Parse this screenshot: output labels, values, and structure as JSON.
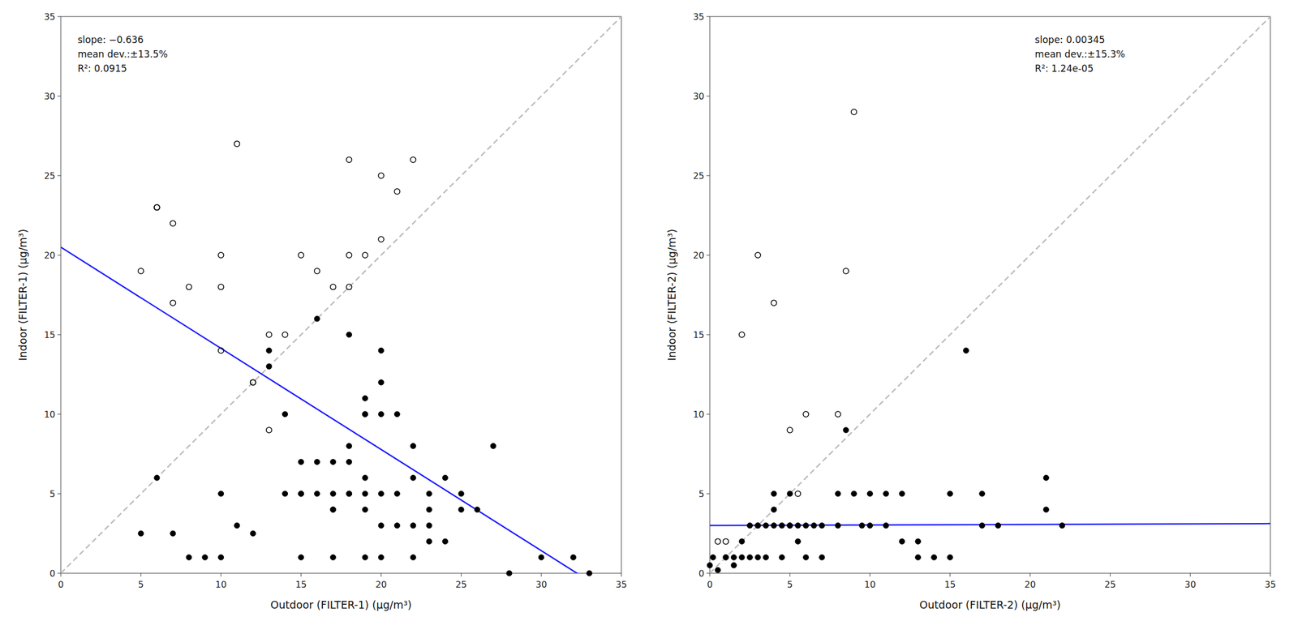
{
  "chart_data": [
    {
      "type": "scatter",
      "xlabel": "Outdoor (FILTER-1) (μg/m³)",
      "ylabel": "Indoor (FILTER-1) (μg/m³)",
      "xlim": [
        0,
        35
      ],
      "ylim": [
        0,
        35
      ],
      "xticks": [
        0,
        5,
        10,
        15,
        20,
        25,
        30,
        35
      ],
      "yticks": [
        0,
        5,
        10,
        15,
        20,
        25,
        30,
        35
      ],
      "grid": false,
      "annotation": [
        "slope: −0.636",
        "mean dev.:±13.5%",
        "R²: 0.0915"
      ],
      "regression": {
        "slope": -0.636,
        "intercept": 20.5,
        "color": "#1a1aff",
        "line_style": "solid"
      },
      "series": [
        {
          "type": "line",
          "line_style": "dashed",
          "color": "#bbbbbb",
          "x": [
            0,
            35
          ],
          "values": [
            0,
            35
          ]
        },
        {
          "type": "scatter",
          "marker": "circle-open",
          "color": "#000000",
          "x": [
            5,
            6,
            6,
            7,
            7,
            8,
            10,
            10,
            10,
            11,
            12,
            12,
            13,
            13,
            14,
            15,
            16,
            17,
            18,
            18,
            18,
            19,
            20,
            20,
            21,
            22
          ],
          "values": [
            19,
            23,
            23,
            17,
            22,
            18,
            20,
            18,
            14,
            27,
            12,
            12,
            9,
            15,
            15,
            20,
            19,
            18,
            20,
            18,
            26,
            20,
            25,
            21,
            24,
            26
          ]
        },
        {
          "type": "scatter",
          "marker": "circle",
          "color": "#000000",
          "x": [
            5,
            6,
            7,
            8,
            9,
            10,
            10,
            11,
            12,
            13,
            13,
            14,
            14,
            15,
            15,
            15,
            15,
            16,
            16,
            16,
            17,
            17,
            17,
            17,
            17,
            18,
            18,
            18,
            18,
            18,
            19,
            19,
            19,
            19,
            19,
            19,
            19,
            20,
            20,
            20,
            20,
            20,
            20,
            21,
            21,
            21,
            22,
            22,
            22,
            22,
            23,
            23,
            23,
            23,
            24,
            24,
            25,
            25,
            26,
            27,
            28,
            30,
            32,
            33
          ],
          "values": [
            2.5,
            6,
            2.5,
            1,
            1,
            5,
            1,
            3,
            2.5,
            14,
            13,
            10,
            5,
            5,
            5,
            7,
            1,
            7,
            5,
            16,
            7,
            5,
            4,
            4,
            1,
            8,
            7,
            5,
            5,
            15,
            11,
            10,
            10,
            6,
            5,
            4,
            1,
            14,
            12,
            10,
            5,
            3,
            1,
            10,
            5,
            3,
            8,
            6,
            3,
            1,
            5,
            4,
            3,
            2,
            6,
            2,
            5,
            4,
            4,
            8,
            0,
            1,
            1,
            0
          ]
        }
      ]
    },
    {
      "type": "scatter",
      "xlabel": "Outdoor (FILTER-2) (μg/m³)",
      "ylabel": "Indoor (FILTER-2) (μg/m³)",
      "xlim": [
        0,
        35
      ],
      "ylim": [
        0,
        35
      ],
      "xticks": [
        0,
        5,
        10,
        15,
        20,
        25,
        30,
        35
      ],
      "yticks": [
        0,
        5,
        10,
        15,
        20,
        25,
        30,
        35
      ],
      "grid": false,
      "annotation": [
        "slope: 0.00345",
        "mean dev.:±15.3%",
        "R²: 1.24e-05"
      ],
      "regression": {
        "slope": 0.00345,
        "intercept": 3.0,
        "color": "#1a1aff",
        "line_style": "solid"
      },
      "series": [
        {
          "type": "line",
          "line_style": "dashed",
          "color": "#bbbbbb",
          "x": [
            0,
            35
          ],
          "values": [
            0,
            35
          ]
        },
        {
          "type": "scatter",
          "marker": "circle-open",
          "color": "#000000",
          "x": [
            0.5,
            1.0,
            2.0,
            3.0,
            4.0,
            5.0,
            5.5,
            6.0,
            8.0,
            8.5,
            9.0
          ],
          "values": [
            2.0,
            2.0,
            15.0,
            20.0,
            17.0,
            9.0,
            5.0,
            10.0,
            10.0,
            19.0,
            29.0
          ]
        },
        {
          "type": "scatter",
          "marker": "circle",
          "color": "#000000",
          "x": [
            0,
            0.2,
            0.5,
            1,
            1,
            1.5,
            1.5,
            2,
            2,
            2.5,
            2.5,
            3,
            3,
            3,
            3.5,
            3.5,
            4,
            4,
            4,
            4.5,
            4.5,
            5,
            5,
            5,
            5.5,
            5.5,
            6,
            6,
            6.5,
            7,
            7,
            8,
            8,
            8.5,
            9,
            9.5,
            10,
            10,
            11,
            11,
            12,
            12,
            13,
            13,
            14,
            15,
            15,
            16,
            17,
            17,
            18,
            21,
            21,
            22
          ],
          "values": [
            0.5,
            1,
            0.2,
            1,
            1,
            1,
            0.5,
            2,
            1,
            1,
            3,
            3,
            3,
            1,
            3,
            1,
            5,
            4,
            3,
            3,
            1,
            5,
            3,
            3,
            3,
            2,
            3,
            1,
            3,
            3,
            1,
            5,
            3,
            9,
            5,
            3,
            5,
            3,
            5,
            3,
            5,
            2,
            2,
            1,
            1,
            5,
            1,
            14,
            5,
            3,
            3,
            6,
            4,
            3
          ]
        }
      ]
    }
  ]
}
